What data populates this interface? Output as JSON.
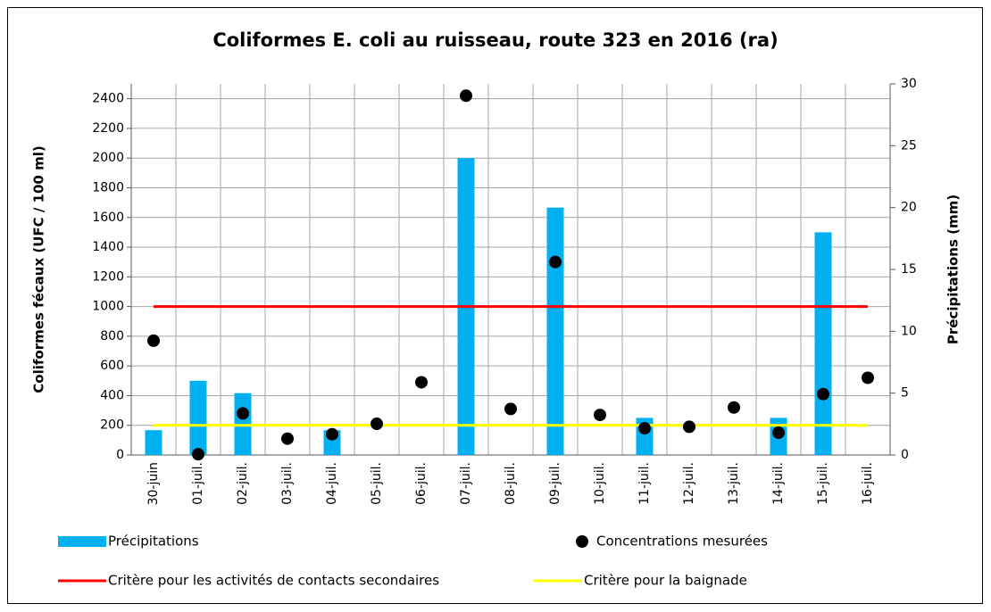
{
  "chart_data": {
    "type": "bar",
    "title": "Coliformes E. coli au ruisseau, route 323 en 2016 (ra)",
    "y_label": "Coliformes fécaux (UFC / 100 ml)",
    "y2_label": "Précipitations (mm)",
    "categories": [
      "30-juin",
      "01-juil.",
      "02-juil.",
      "03-juil.",
      "04-juil.",
      "05-juil.",
      "06-juil.",
      "07-juil.",
      "08-juil.",
      "09-juil.",
      "10-juil.",
      "11-juil.",
      "12-juil.",
      "13-juil.",
      "14-juil.",
      "15-juil.",
      "16-juil."
    ],
    "ylim": [
      0,
      2500
    ],
    "yticks": [
      0,
      200,
      400,
      600,
      800,
      1000,
      1200,
      1400,
      1600,
      1800,
      2000,
      2200,
      2400
    ],
    "y2lim": [
      0,
      30
    ],
    "y2ticks": [
      0,
      5,
      10,
      15,
      20,
      25,
      30
    ],
    "grid": true,
    "series": [
      {
        "name": "Précipitations",
        "type": "bar",
        "axis": "y2",
        "color": "#00b0f0",
        "values": [
          2,
          6,
          5,
          0,
          2,
          0,
          0,
          24,
          0,
          20,
          0,
          3,
          0,
          0,
          3,
          18,
          0
        ]
      },
      {
        "name": "Concentrations mesurées",
        "type": "scatter",
        "color": "#000000",
        "values": [
          770,
          5,
          280,
          110,
          140,
          210,
          490,
          2420,
          310,
          1300,
          270,
          180,
          190,
          320,
          150,
          410,
          520
        ]
      },
      {
        "name": "Critère pour les activités de contacts secondaires",
        "type": "line",
        "color": "#ff0000",
        "values": [
          1000,
          1000,
          1000,
          1000,
          1000,
          1000,
          1000,
          1000,
          1000,
          1000,
          1000,
          1000,
          1000,
          1000,
          1000,
          1000,
          1000
        ]
      },
      {
        "name": "Critère pour la baignade",
        "type": "line",
        "color": "#ffff00",
        "values": [
          200,
          200,
          200,
          200,
          200,
          200,
          200,
          200,
          200,
          200,
          200,
          200,
          200,
          200,
          200,
          200,
          200
        ]
      }
    ]
  }
}
